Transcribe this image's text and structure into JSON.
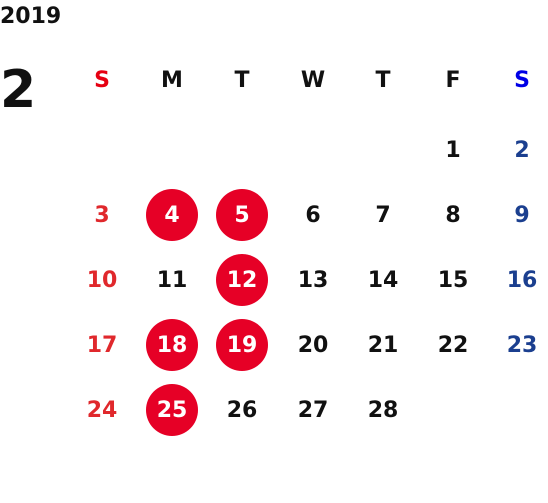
{
  "calendar": {
    "year": "2019",
    "month": "2",
    "weekdays": [
      "S",
      "M",
      "T",
      "W",
      "T",
      "F",
      "S"
    ],
    "weeks": [
      [
        null,
        null,
        null,
        null,
        null,
        "1",
        "2"
      ],
      [
        "3",
        "4",
        "5",
        "6",
        "7",
        "8",
        "9"
      ],
      [
        "10",
        "11",
        "12",
        "13",
        "14",
        "15",
        "16"
      ],
      [
        "17",
        "18",
        "19",
        "20",
        "21",
        "22",
        "23"
      ],
      [
        "24",
        "25",
        "26",
        "27",
        "28",
        null,
        null
      ]
    ],
    "highlighted_days": [
      "4",
      "5",
      "12",
      "18",
      "19",
      "25"
    ]
  },
  "colors": {
    "weekday_text": "#111111",
    "sunday_header": "#e60012",
    "saturday_header": "#0000e6",
    "sunday_text": "#e0282c",
    "saturday_text": "#1b3f8f",
    "highlight_bg": "#e60026",
    "highlight_text": "#ffffff"
  }
}
